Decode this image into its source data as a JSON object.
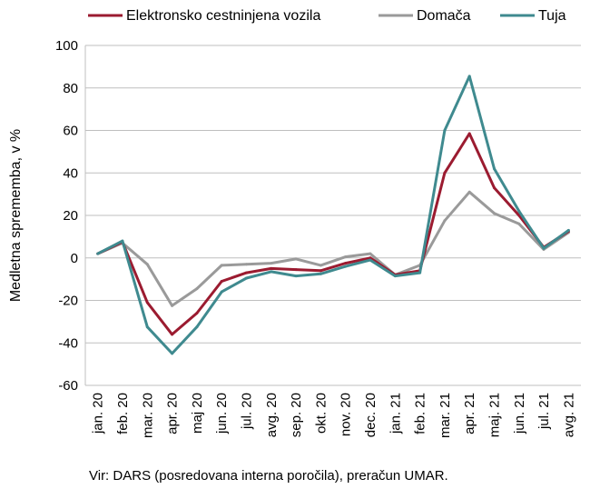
{
  "chart_data": {
    "type": "line",
    "title": "",
    "xlabel": "",
    "ylabel": "Medletna sprememba, v %",
    "ylim": [
      -60,
      100
    ],
    "yticks": [
      -60,
      -40,
      -20,
      0,
      20,
      40,
      60,
      80,
      100
    ],
    "grid": true,
    "legend_position": "top",
    "categories": [
      "jan. 20",
      "feb. 20",
      "mar. 20",
      "apr. 20",
      "maj 20",
      "jun. 20",
      "jul. 20",
      "avg. 20",
      "sep. 20",
      "okt. 20",
      "nov. 20",
      "dec. 20",
      "jan. 21",
      "feb. 21",
      "mar. 21",
      "apr. 21",
      "maj. 21",
      "jun. 21",
      "jul. 21",
      "avg. 21"
    ],
    "series": [
      {
        "name": "Elektronsko cestninjena vozila",
        "color": "#9b1b30",
        "values": [
          2,
          7.5,
          -21,
          -36,
          -26,
          -11,
          -7,
          -5,
          -5.5,
          -6,
          -2.5,
          0,
          -8,
          -6,
          40,
          58.5,
          33,
          20,
          5,
          12.5
        ]
      },
      {
        "name": "Domača",
        "color": "#9a9a9a",
        "values": [
          2,
          7,
          -3,
          -22.5,
          -14.5,
          -3.5,
          -3,
          -2.5,
          -0.5,
          -3.5,
          0.5,
          2,
          -8,
          -3.5,
          17.5,
          31,
          21,
          16,
          4,
          12
        ]
      },
      {
        "name": "Tuja",
        "color": "#3f8a8f",
        "values": [
          2,
          8,
          -32.5,
          -45,
          -32.5,
          -16,
          -9.5,
          -6.5,
          -8.5,
          -7.5,
          -4,
          -1,
          -8.5,
          -7,
          60,
          85.5,
          42,
          22,
          4.5,
          13
        ]
      }
    ]
  },
  "source": "Vir: DARS (posredovana interna poročila), preračun UMAR."
}
